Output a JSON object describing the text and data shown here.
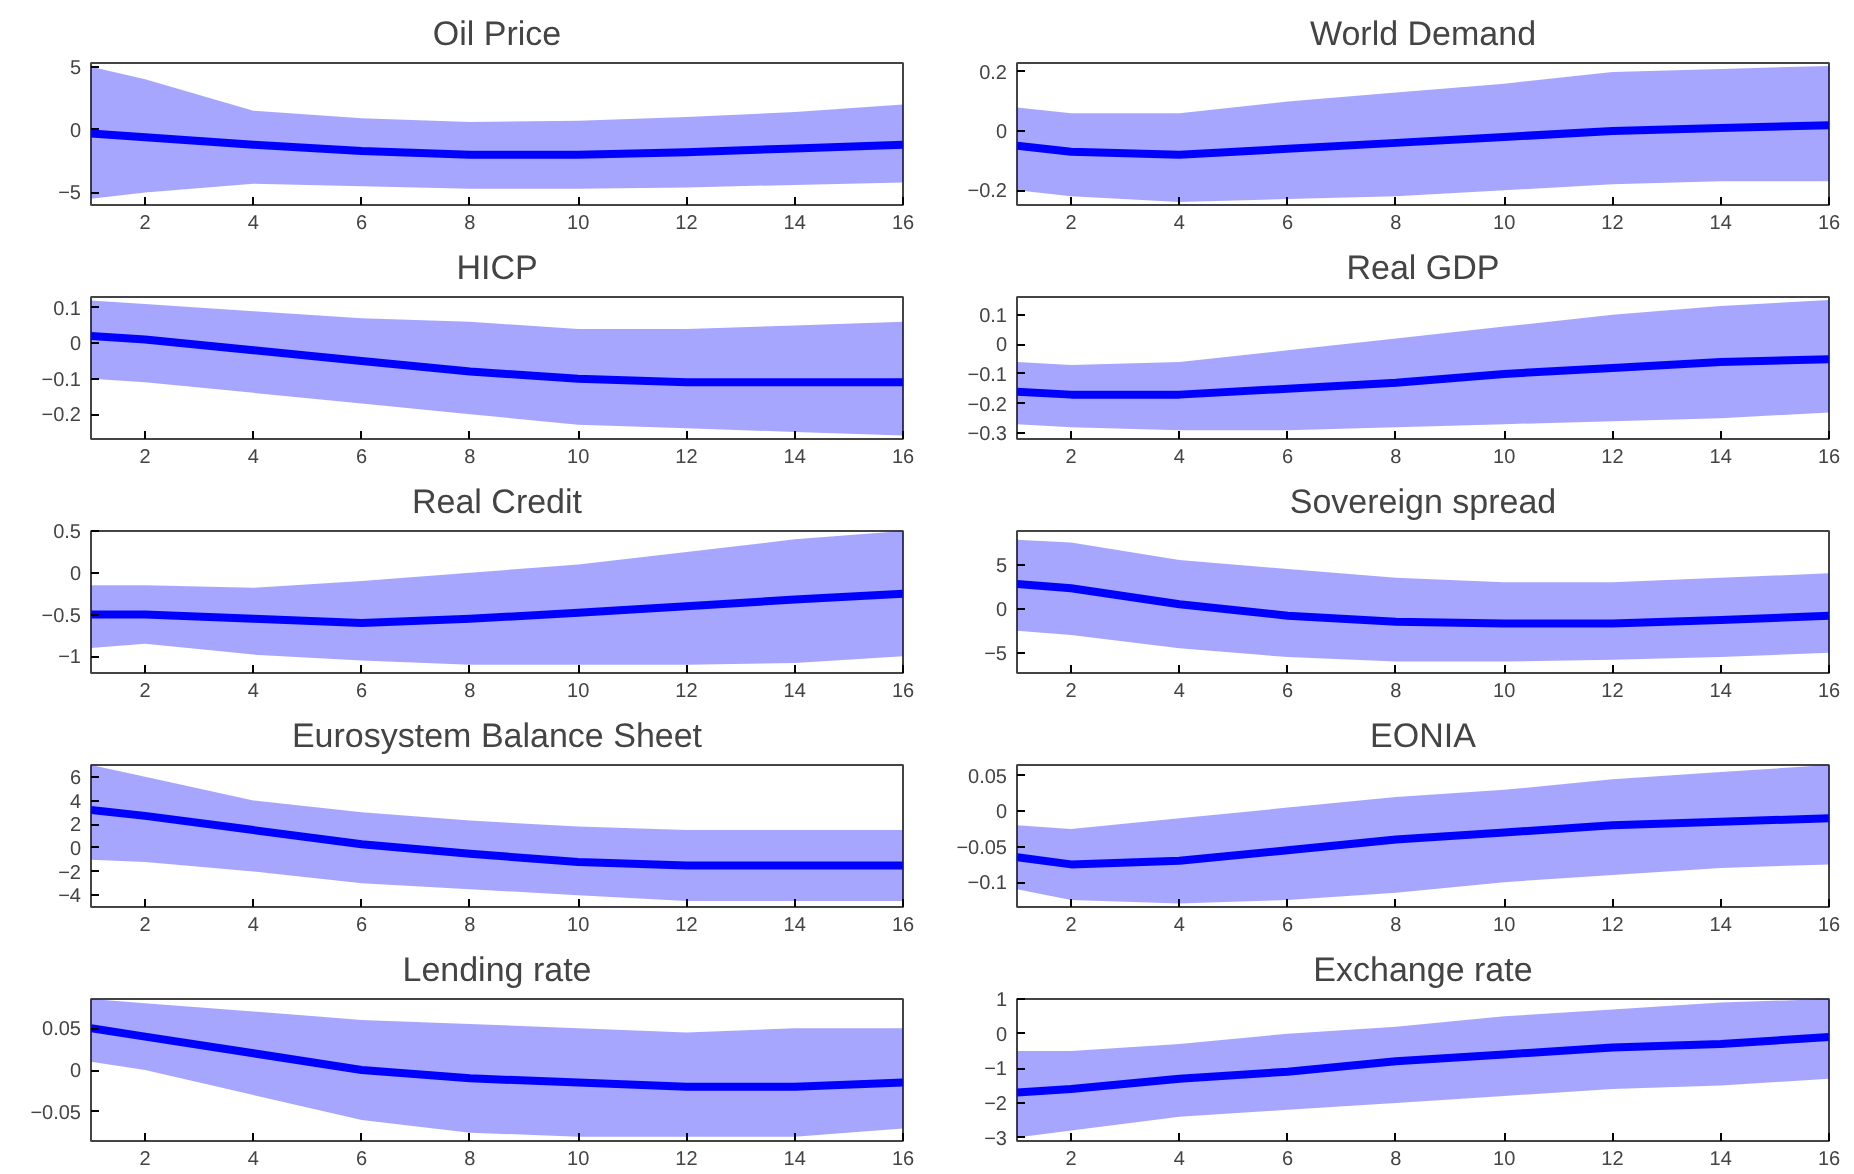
{
  "chart_data": [
    {
      "type": "line",
      "title": "Oil Price",
      "x": [
        1,
        2,
        4,
        6,
        8,
        10,
        12,
        14,
        16
      ],
      "xlim": [
        1,
        16
      ],
      "xticks": [
        2,
        4,
        6,
        8,
        10,
        12,
        14,
        16
      ],
      "ylim": [
        -6,
        5.3
      ],
      "yticks": [
        -5,
        0,
        5
      ],
      "series": [
        {
          "color": "#0000ff",
          "values": [
            -0.3,
            -0.6,
            -1.2,
            -1.7,
            -2,
            -2,
            -1.8,
            -1.5,
            -1.2
          ],
          "lower": [
            -5.5,
            -5,
            -4.3,
            -4.5,
            -4.7,
            -4.7,
            -4.6,
            -4.4,
            -4.2
          ],
          "upper": [
            5,
            4,
            1.5,
            0.9,
            0.6,
            0.7,
            1,
            1.4,
            2
          ]
        }
      ]
    },
    {
      "type": "line",
      "title": "World Demand",
      "x": [
        1,
        2,
        4,
        6,
        8,
        10,
        12,
        14,
        16
      ],
      "xlim": [
        1,
        16
      ],
      "xticks": [
        2,
        4,
        6,
        8,
        10,
        12,
        14,
        16
      ],
      "ylim": [
        -0.25,
        0.23
      ],
      "yticks": [
        -0.2,
        0,
        0.2
      ],
      "series": [
        {
          "color": "#0000ff",
          "values": [
            -0.05,
            -0.07,
            -0.08,
            -0.06,
            -0.04,
            -0.02,
            0,
            0.01,
            0.02
          ],
          "lower": [
            -0.2,
            -0.22,
            -0.24,
            -0.23,
            -0.22,
            -0.2,
            -0.18,
            -0.17,
            -0.17
          ],
          "upper": [
            0.08,
            0.06,
            0.06,
            0.1,
            0.13,
            0.16,
            0.2,
            0.21,
            0.22
          ]
        }
      ]
    },
    {
      "type": "line",
      "title": "HICP",
      "x": [
        1,
        2,
        4,
        6,
        8,
        10,
        12,
        14,
        16
      ],
      "xlim": [
        1,
        16
      ],
      "xticks": [
        2,
        4,
        6,
        8,
        10,
        12,
        14,
        16
      ],
      "ylim": [
        -0.27,
        0.13
      ],
      "yticks": [
        -0.2,
        -0.1,
        0,
        0.1
      ],
      "series": [
        {
          "color": "#0000ff",
          "values": [
            0.02,
            0.01,
            -0.02,
            -0.05,
            -0.08,
            -0.1,
            -0.11,
            -0.11,
            -0.11
          ],
          "lower": [
            -0.1,
            -0.11,
            -0.14,
            -0.17,
            -0.2,
            -0.23,
            -0.24,
            -0.25,
            -0.26
          ],
          "upper": [
            0.12,
            0.11,
            0.09,
            0.07,
            0.06,
            0.04,
            0.04,
            0.05,
            0.06
          ]
        }
      ]
    },
    {
      "type": "line",
      "title": "Real GDP",
      "x": [
        1,
        2,
        4,
        6,
        8,
        10,
        12,
        14,
        16
      ],
      "xlim": [
        1,
        16
      ],
      "xticks": [
        2,
        4,
        6,
        8,
        10,
        12,
        14,
        16
      ],
      "ylim": [
        -0.32,
        0.16
      ],
      "yticks": [
        -0.3,
        -0.2,
        -0.1,
        0,
        0.1
      ],
      "series": [
        {
          "color": "#0000ff",
          "values": [
            -0.16,
            -0.17,
            -0.17,
            -0.15,
            -0.13,
            -0.1,
            -0.08,
            -0.06,
            -0.05
          ],
          "lower": [
            -0.27,
            -0.28,
            -0.29,
            -0.29,
            -0.28,
            -0.27,
            -0.26,
            -0.25,
            -0.23
          ],
          "upper": [
            -0.06,
            -0.07,
            -0.06,
            -0.02,
            0.02,
            0.06,
            0.1,
            0.13,
            0.15
          ]
        }
      ]
    },
    {
      "type": "line",
      "title": "Real Credit",
      "x": [
        1,
        2,
        4,
        6,
        8,
        10,
        12,
        14,
        16
      ],
      "xlim": [
        1,
        16
      ],
      "xticks": [
        2,
        4,
        6,
        8,
        10,
        12,
        14,
        16
      ],
      "ylim": [
        -1.2,
        0.5
      ],
      "yticks": [
        -1,
        -0.5,
        0,
        0.5
      ],
      "series": [
        {
          "color": "#0000ff",
          "values": [
            -0.5,
            -0.5,
            -0.55,
            -0.6,
            -0.55,
            -0.48,
            -0.4,
            -0.32,
            -0.25
          ],
          "lower": [
            -0.9,
            -0.85,
            -0.98,
            -1.05,
            -1.1,
            -1.1,
            -1.1,
            -1.08,
            -1
          ],
          "upper": [
            -0.15,
            -0.15,
            -0.18,
            -0.1,
            0,
            0.1,
            0.25,
            0.4,
            0.5
          ]
        }
      ]
    },
    {
      "type": "line",
      "title": "Sovereign spread",
      "x": [
        1,
        2,
        4,
        6,
        8,
        10,
        12,
        14,
        16
      ],
      "xlim": [
        1,
        16
      ],
      "xticks": [
        2,
        4,
        6,
        8,
        10,
        12,
        14,
        16
      ],
      "ylim": [
        -7.3,
        8.8
      ],
      "yticks": [
        -5,
        0,
        5
      ],
      "series": [
        {
          "color": "#0000ff",
          "values": [
            2.8,
            2.3,
            0.5,
            -0.8,
            -1.5,
            -1.7,
            -1.7,
            -1.3,
            -0.8
          ],
          "lower": [
            -2.5,
            -3,
            -4.5,
            -5.5,
            -6,
            -6,
            -5.8,
            -5.5,
            -5
          ],
          "upper": [
            7.8,
            7.5,
            5.5,
            4.5,
            3.5,
            3,
            3,
            3.5,
            4
          ]
        }
      ]
    },
    {
      "type": "line",
      "title": "Eurosystem Balance Sheet",
      "x": [
        1,
        2,
        4,
        6,
        8,
        10,
        12,
        14,
        16
      ],
      "xlim": [
        1,
        16
      ],
      "xticks": [
        2,
        4,
        6,
        8,
        10,
        12,
        14,
        16
      ],
      "ylim": [
        -5,
        7
      ],
      "yticks": [
        -4,
        -2,
        0,
        2,
        4,
        6
      ],
      "series": [
        {
          "color": "#0000ff",
          "values": [
            3.2,
            2.7,
            1.5,
            0.3,
            -0.5,
            -1.2,
            -1.5,
            -1.5,
            -1.5
          ],
          "lower": [
            -1,
            -1.2,
            -2,
            -3,
            -3.5,
            -4,
            -4.5,
            -4.5,
            -4.5
          ],
          "upper": [
            7,
            6,
            4,
            3,
            2.3,
            1.8,
            1.5,
            1.5,
            1.5
          ]
        }
      ]
    },
    {
      "type": "line",
      "title": "EONIA",
      "x": [
        1,
        2,
        4,
        6,
        8,
        10,
        12,
        14,
        16
      ],
      "xlim": [
        1,
        16
      ],
      "xticks": [
        2,
        4,
        6,
        8,
        10,
        12,
        14,
        16
      ],
      "ylim": [
        -0.135,
        0.065
      ],
      "yticks": [
        -0.1,
        -0.05,
        0,
        0.05
      ],
      "series": [
        {
          "color": "#0000ff",
          "values": [
            -0.065,
            -0.075,
            -0.07,
            -0.055,
            -0.04,
            -0.03,
            -0.02,
            -0.015,
            -0.01
          ],
          "lower": [
            -0.11,
            -0.125,
            -0.13,
            -0.125,
            -0.115,
            -0.1,
            -0.09,
            -0.08,
            -0.075
          ],
          "upper": [
            -0.02,
            -0.025,
            -0.01,
            0.005,
            0.02,
            0.03,
            0.045,
            0.055,
            0.065
          ]
        }
      ]
    },
    {
      "type": "line",
      "title": "Lending rate",
      "x": [
        1,
        2,
        4,
        6,
        8,
        10,
        12,
        14,
        16
      ],
      "xlim": [
        1,
        16
      ],
      "xticks": [
        2,
        4,
        6,
        8,
        10,
        12,
        14,
        16
      ],
      "ylim": [
        -0.085,
        0.085
      ],
      "yticks": [
        -0.05,
        0,
        0.05
      ],
      "series": [
        {
          "color": "#0000ff",
          "values": [
            0.05,
            0.04,
            0.02,
            0,
            -0.01,
            -0.015,
            -0.02,
            -0.02,
            -0.015
          ],
          "lower": [
            0.01,
            0,
            -0.03,
            -0.06,
            -0.075,
            -0.08,
            -0.08,
            -0.08,
            -0.07
          ],
          "upper": [
            0.085,
            0.08,
            0.07,
            0.06,
            0.055,
            0.05,
            0.045,
            0.05,
            0.05
          ]
        }
      ]
    },
    {
      "type": "line",
      "title": "Exchange rate",
      "x": [
        1,
        2,
        4,
        6,
        8,
        10,
        12,
        14,
        16
      ],
      "xlim": [
        1,
        16
      ],
      "xticks": [
        2,
        4,
        6,
        8,
        10,
        12,
        14,
        16
      ],
      "ylim": [
        -3.1,
        1
      ],
      "yticks": [
        -3,
        -2,
        -1,
        0,
        1
      ],
      "series": [
        {
          "color": "#0000ff",
          "values": [
            -1.7,
            -1.6,
            -1.3,
            -1.1,
            -0.8,
            -0.6,
            -0.4,
            -0.3,
            -0.1
          ],
          "lower": [
            -3,
            -2.8,
            -2.4,
            -2.2,
            -2,
            -1.8,
            -1.6,
            -1.5,
            -1.3
          ],
          "upper": [
            -0.5,
            -0.5,
            -0.3,
            0,
            0.2,
            0.5,
            0.7,
            0.9,
            1
          ]
        }
      ]
    }
  ]
}
